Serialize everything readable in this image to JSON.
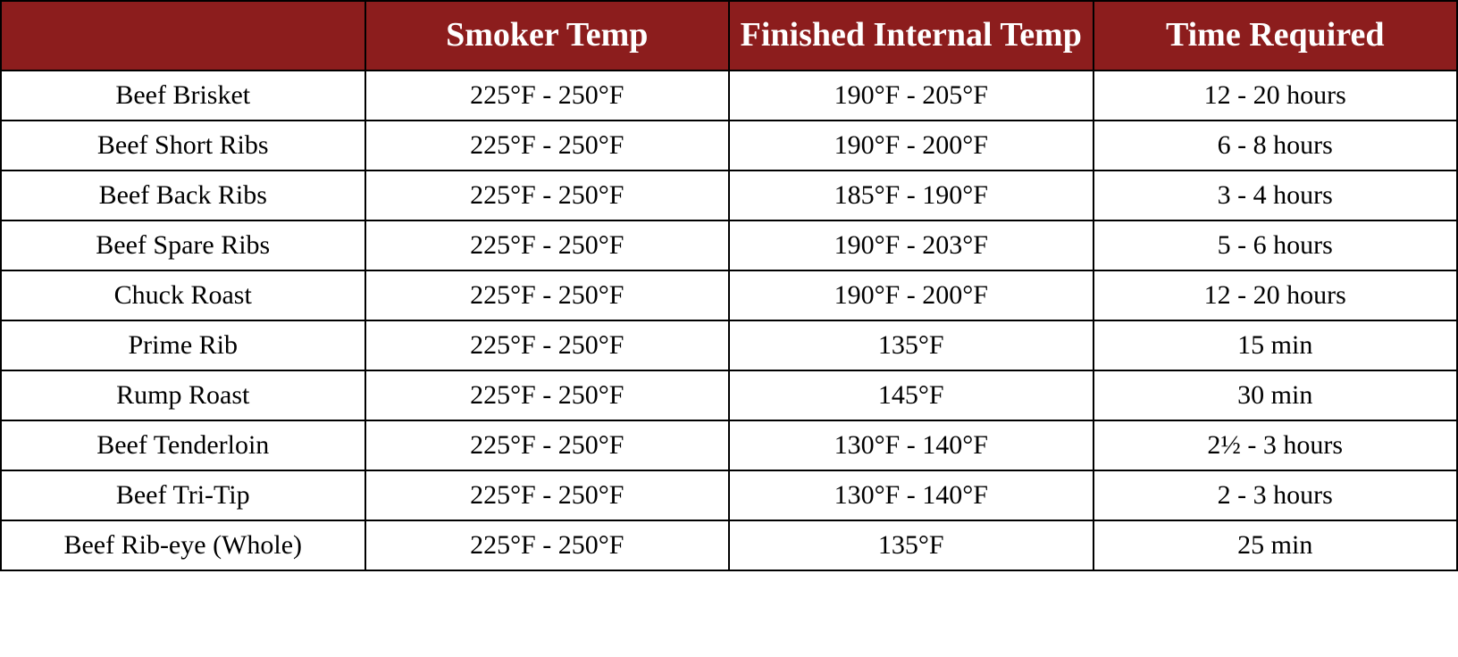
{
  "table": {
    "header_bg": "#8c1d1d",
    "header_fg": "#ffffff",
    "border_color": "#000000",
    "row_bg": "#ffffff",
    "text_color": "#000000",
    "header_fontsize": 38,
    "cell_fontsize": 30,
    "columns": [
      {
        "key": "cut",
        "label": ""
      },
      {
        "key": "smoker_temp",
        "label": "Smoker Temp"
      },
      {
        "key": "internal_temp",
        "label": "Finished Internal Temp"
      },
      {
        "key": "time",
        "label": "Time Required"
      }
    ],
    "rows": [
      {
        "cut": "Beef Brisket",
        "smoker_temp": "225°F - 250°F",
        "internal_temp": "190°F - 205°F",
        "time": "12 - 20 hours"
      },
      {
        "cut": "Beef Short Ribs",
        "smoker_temp": "225°F - 250°F",
        "internal_temp": "190°F - 200°F",
        "time": "6 - 8 hours"
      },
      {
        "cut": "Beef Back Ribs",
        "smoker_temp": "225°F - 250°F",
        "internal_temp": "185°F - 190°F",
        "time": "3 - 4 hours"
      },
      {
        "cut": "Beef Spare Ribs",
        "smoker_temp": "225°F - 250°F",
        "internal_temp": "190°F - 203°F",
        "time": "5 - 6 hours"
      },
      {
        "cut": "Chuck Roast",
        "smoker_temp": "225°F - 250°F",
        "internal_temp": "190°F - 200°F",
        "time": "12 - 20 hours"
      },
      {
        "cut": "Prime Rib",
        "smoker_temp": "225°F - 250°F",
        "internal_temp": "135°F",
        "time": "15 min"
      },
      {
        "cut": "Rump Roast",
        "smoker_temp": "225°F - 250°F",
        "internal_temp": "145°F",
        "time": "30 min"
      },
      {
        "cut": "Beef Tenderloin",
        "smoker_temp": "225°F - 250°F",
        "internal_temp": "130°F - 140°F",
        "time": "2½ - 3 hours"
      },
      {
        "cut": "Beef Tri-Tip",
        "smoker_temp": "225°F - 250°F",
        "internal_temp": "130°F - 140°F",
        "time": "2 - 3 hours"
      },
      {
        "cut": "Beef Rib-eye (Whole)",
        "smoker_temp": "225°F - 250°F",
        "internal_temp": "135°F",
        "time": "25 min"
      }
    ]
  }
}
